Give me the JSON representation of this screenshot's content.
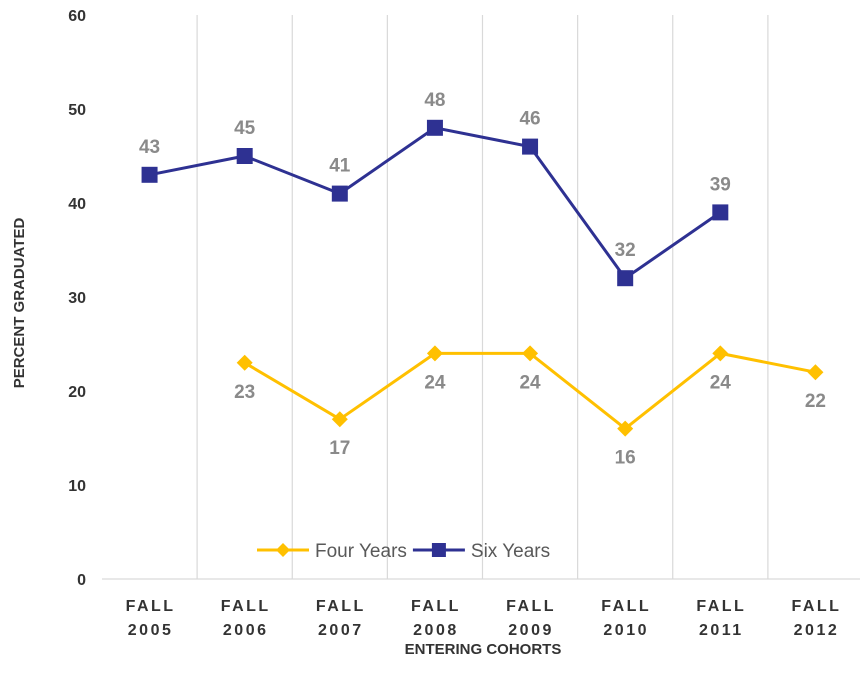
{
  "chart_data": {
    "type": "line",
    "title": "",
    "xlabel": "ENTERING COHORTS",
    "ylabel": "PERCENT GRADUATED",
    "categories": [
      [
        "FALL",
        "2005"
      ],
      [
        "FALL",
        "2006"
      ],
      [
        "FALL",
        "2007"
      ],
      [
        "FALL",
        "2008"
      ],
      [
        "FALL",
        "2009"
      ],
      [
        "FALL",
        "2010"
      ],
      [
        "FALL",
        "2011"
      ],
      [
        "FALL",
        "2012"
      ]
    ],
    "ylim": [
      0,
      60
    ],
    "yticks": [
      0,
      10,
      20,
      30,
      40,
      50,
      60
    ],
    "grid": "vertical",
    "legend_position": "bottom-center",
    "series": [
      {
        "name": "Four Years",
        "color": "#FFC000",
        "marker": "diamond",
        "label_position": "below",
        "values": [
          null,
          23,
          17,
          24,
          24,
          16,
          24,
          22
        ]
      },
      {
        "name": "Six Years",
        "color": "#2E3192",
        "marker": "square",
        "label_position": "above",
        "values": [
          43,
          45,
          41,
          48,
          46,
          32,
          39,
          null
        ]
      }
    ]
  }
}
